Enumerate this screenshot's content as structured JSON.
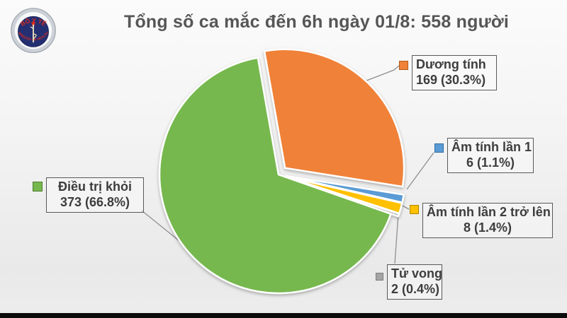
{
  "header": {
    "title": "Tổng số ca mắc đến 6h ngày 01/8: 558 người",
    "logo": {
      "top_text": "BỘ Y TẾ",
      "bottom_text": "MINISTRY OF HEALTH",
      "accent_red": "#d42a1e",
      "navy": "#242f72"
    }
  },
  "chart_data": {
    "type": "pie",
    "title": "Tổng số ca mắc đến 6h ngày 01/8: 558 người",
    "total": 558,
    "unit": "người",
    "legend_position": "callouts",
    "start_angle_deg": -10,
    "slices": [
      {
        "id": "duong-tinh",
        "label": "Dương tính",
        "value": 169,
        "pct": "30.3%",
        "color": "#F08138",
        "explode": 13
      },
      {
        "id": "am-tinh-1",
        "label": "Âm tính lần 1",
        "value": 6,
        "pct": "1.1%",
        "color": "#5B9BD5",
        "explode": 11
      },
      {
        "id": "am-tinh-2",
        "label": "Âm tính lần 2 trở lên",
        "value": 8,
        "pct": "1.4%",
        "color": "#FFC000",
        "explode": 11
      },
      {
        "id": "tu-vong",
        "label": "Tử vong",
        "value": 2,
        "pct": "0.4%",
        "color": "#A5A5A5",
        "explode": 11
      },
      {
        "id": "dieu-tri-khoi",
        "label": "Điều trị khỏi",
        "value": 373,
        "pct": "66.8%",
        "color": "#76B84E",
        "explode": 0
      }
    ]
  },
  "callouts": {
    "duong_tinh": {
      "line1": "Dương tính",
      "line2": "169 (30.3%)"
    },
    "am_tinh_1": {
      "line1": "Âm tính lần 1",
      "line2": "6 (1.1%)"
    },
    "am_tinh_2": {
      "line1": "Âm tính lần 2 trở lên",
      "line2": "8 (1.4%)"
    },
    "tu_vong": {
      "line1": "Tử vong",
      "line2": "2 (0.4%)"
    },
    "dieu_tri_khoi": {
      "line1": "Điều trị khỏi",
      "line2": "373 (66.8%)"
    }
  }
}
